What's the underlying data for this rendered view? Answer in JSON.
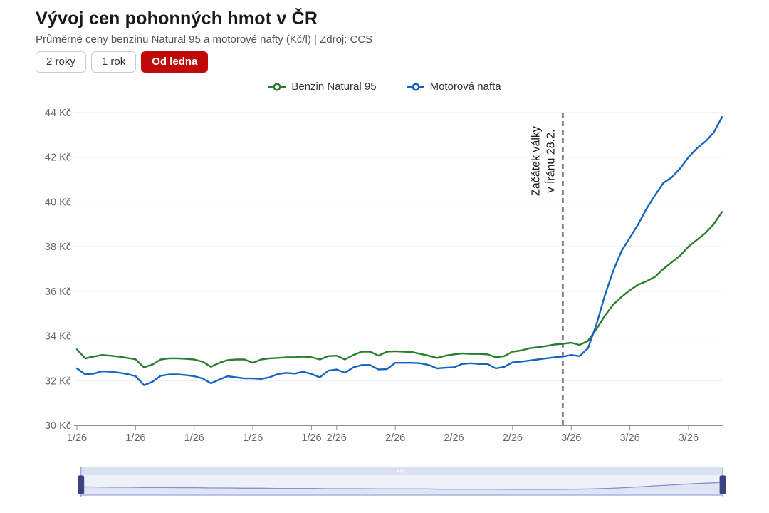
{
  "header": {
    "title": "Vývoj cen pohonných hmot v ČR",
    "subtitle": "Průměrné ceny benzinu Natural 95 a motorové nafty (Kč/l) | Zdroj: CCS"
  },
  "range_buttons": [
    {
      "label": "2 roky",
      "active": false
    },
    {
      "label": "1 rok",
      "active": false
    },
    {
      "label": "Od ledna",
      "active": true
    }
  ],
  "colors": {
    "accent_red": "#c00a0a",
    "benzin_green": "#2a7d2e",
    "nafta_blue": "#1565c0",
    "grid": "#e8e8e8",
    "axis": "#8f8f8f",
    "tick_text": "#666666",
    "annotation": "#1a1a1a",
    "navigator_track": "#eef1fa",
    "navigator_strip": "#dce1f2",
    "navigator_fill": "#dfe5f4",
    "navigator_line": "#8490cc",
    "navigator_handle": "#3c4180",
    "navigator_border": "#aab3de"
  },
  "chart_data": {
    "type": "line",
    "title": "Vývoj cen pohonných hmot v ČR",
    "ylabel": "Kč/l",
    "ylim": [
      30,
      44
    ],
    "grid": "horizontal",
    "legend_position": "top",
    "yticks": [
      {
        "value": 30,
        "label": "30 Kč"
      },
      {
        "value": 32,
        "label": "32 Kč"
      },
      {
        "value": 34,
        "label": "34 Kč"
      },
      {
        "value": 36,
        "label": "36 Kč"
      },
      {
        "value": 38,
        "label": "38 Kč"
      },
      {
        "value": 40,
        "label": "40 Kč"
      },
      {
        "value": 42,
        "label": "42 Kč"
      },
      {
        "value": 44,
        "label": "44 Kč"
      }
    ],
    "xticks": [
      {
        "day": 0,
        "label": "1/26"
      },
      {
        "day": 7,
        "label": "1/26"
      },
      {
        "day": 14,
        "label": "1/26"
      },
      {
        "day": 21,
        "label": "1/26"
      },
      {
        "day": 28,
        "label": "1/26"
      },
      {
        "day": 31,
        "label": "2/26"
      },
      {
        "day": 38,
        "label": "2/26"
      },
      {
        "day": 45,
        "label": "2/26"
      },
      {
        "day": 52,
        "label": "2/26"
      },
      {
        "day": 59,
        "label": "3/26"
      },
      {
        "day": 66,
        "label": "3/26"
      },
      {
        "day": 73,
        "label": "3/26"
      }
    ],
    "annotation": {
      "line1": "Začátek války",
      "line2": "v Íránu 28.2.",
      "day": 58
    },
    "series": [
      {
        "name": "Benzin Natural 95",
        "color": "#2a7d2e",
        "values": [
          33.4,
          33.0,
          33.08,
          33.15,
          33.12,
          33.08,
          33.02,
          32.96,
          32.6,
          32.72,
          32.95,
          33.0,
          33.0,
          32.98,
          32.95,
          32.85,
          32.62,
          32.8,
          32.92,
          32.95,
          32.95,
          32.8,
          32.95,
          33.0,
          33.02,
          33.05,
          33.05,
          33.08,
          33.05,
          32.95,
          33.1,
          33.12,
          32.95,
          33.15,
          33.3,
          33.3,
          33.12,
          33.3,
          33.32,
          33.3,
          33.28,
          33.2,
          33.12,
          33.02,
          33.12,
          33.18,
          33.22,
          33.2,
          33.2,
          33.18,
          33.05,
          33.1,
          33.3,
          33.35,
          33.45,
          33.5,
          33.55,
          33.62,
          33.65,
          33.7,
          33.6,
          33.78,
          34.3,
          34.9,
          35.4,
          35.75,
          36.05,
          36.3,
          36.45,
          36.65,
          37.0,
          37.3,
          37.6,
          38.0,
          38.3,
          38.6,
          39.0,
          39.55
        ]
      },
      {
        "name": "Motorová nafta",
        "color": "#1565c0",
        "values": [
          32.55,
          32.28,
          32.32,
          32.42,
          32.4,
          32.36,
          32.3,
          32.2,
          31.8,
          31.95,
          32.22,
          32.28,
          32.28,
          32.25,
          32.2,
          32.1,
          31.88,
          32.05,
          32.2,
          32.15,
          32.1,
          32.1,
          32.08,
          32.15,
          32.3,
          32.35,
          32.32,
          32.4,
          32.3,
          32.15,
          32.45,
          32.5,
          32.35,
          32.6,
          32.7,
          32.7,
          32.5,
          32.52,
          32.8,
          32.8,
          32.8,
          32.78,
          32.7,
          32.55,
          32.58,
          32.6,
          32.75,
          32.78,
          32.75,
          32.75,
          32.55,
          32.62,
          32.82,
          32.85,
          32.9,
          32.95,
          33.0,
          33.05,
          33.08,
          33.15,
          33.1,
          33.45,
          34.5,
          35.8,
          36.9,
          37.8,
          38.4,
          39.0,
          39.7,
          40.3,
          40.85,
          41.1,
          41.5,
          42.0,
          42.4,
          42.7,
          43.1,
          43.8
        ]
      }
    ],
    "navigator": {
      "values": [
        0.33,
        0.32,
        0.31,
        0.31,
        0.3,
        0.3,
        0.29,
        0.29,
        0.28,
        0.28,
        0.27,
        0.27,
        0.26,
        0.26,
        0.26,
        0.25,
        0.25,
        0.25,
        0.24,
        0.24,
        0.24,
        0.24,
        0.23,
        0.23,
        0.23,
        0.23,
        0.22,
        0.22,
        0.22,
        0.22,
        0.23,
        0.24,
        0.26,
        0.29,
        0.33,
        0.37,
        0.41,
        0.45,
        0.48,
        0.51
      ]
    }
  }
}
